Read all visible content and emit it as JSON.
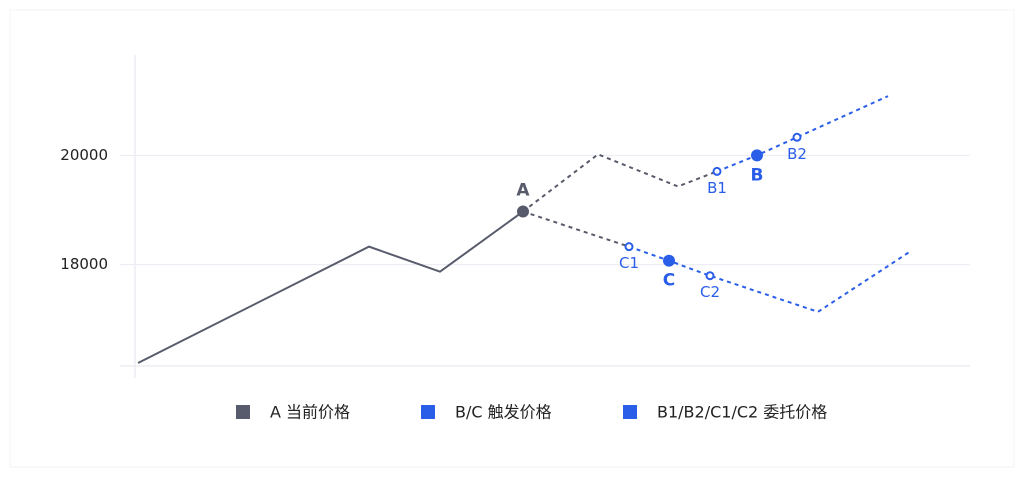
{
  "chart_data": {
    "type": "line",
    "xlim": [
      0,
      835
    ],
    "ylim": [
      16147,
      21835
    ],
    "yticks": [
      18000,
      20000
    ],
    "grid": true,
    "series": [
      {
        "color": "#585b6b",
        "dashed": false,
        "x": [
          3,
          234,
          305,
          388
        ],
        "values": [
          16202,
          18330,
          17872,
          18972
        ]
      },
      {
        "color": "#585b6b",
        "dashed": true,
        "x": [
          388,
          463,
          543,
          582
        ],
        "values": [
          18972,
          20018,
          19431,
          19706
        ]
      },
      {
        "color": "#2a5ee8",
        "dashed": true,
        "x": [
          582,
          622,
          662,
          753
        ],
        "values": [
          19706,
          20000,
          20330,
          21083
        ]
      },
      {
        "color": "#585b6b",
        "dashed": true,
        "x": [
          388,
          494
        ],
        "values": [
          18972,
          18330
        ]
      },
      {
        "color": "#2a5ee8",
        "dashed": true,
        "x": [
          494,
          534,
          575,
          683,
          775
        ],
        "values": [
          18330,
          18073,
          17798,
          17138,
          18239
        ]
      }
    ],
    "points": [
      {
        "label": "A",
        "x": 388,
        "y": 18972,
        "color": "#585b6b",
        "filled": true
      },
      {
        "label": "B",
        "x": 622,
        "y": 20000,
        "color": "#2a5ee8",
        "filled": true
      },
      {
        "label": "C",
        "x": 534,
        "y": 18073,
        "color": "#2a5ee8",
        "filled": true
      },
      {
        "label": "B1",
        "x": 582,
        "y": 19706,
        "color": "#2a5ee8",
        "filled": false
      },
      {
        "label": "B2",
        "x": 662,
        "y": 20330,
        "color": "#2a5ee8",
        "filled": false
      },
      {
        "label": "C1",
        "x": 494,
        "y": 18330,
        "color": "#2a5ee8",
        "filled": false
      },
      {
        "label": "C2",
        "x": 575,
        "y": 17798,
        "color": "#2a5ee8",
        "filled": false
      }
    ],
    "legend": [
      {
        "label": "A 当前价格",
        "color": "#585b6b"
      },
      {
        "label": "B/C 触发价格",
        "color": "#2a5ee8"
      },
      {
        "label": "B1/B2/C1/C2 委托价格",
        "color": "#2a5ee8"
      }
    ]
  }
}
